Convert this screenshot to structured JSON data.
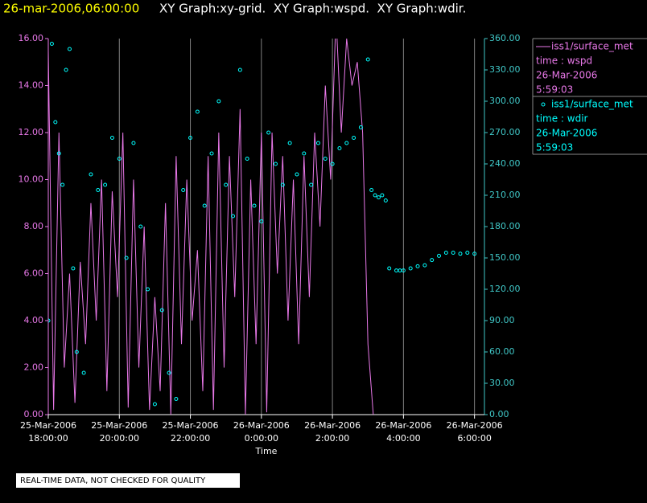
{
  "chart_data": {
    "type": "line-scatter",
    "title_time": "26-mar-2006,06:00:00",
    "title": "XY Graph:xy-grid.  XY Graph:wspd.  XY Graph:wdir.",
    "xlabel": "Time",
    "note": "REAL-TIME DATA, NOT CHECKED FOR QUALITY",
    "grid": true,
    "xlim": [
      0,
      12.28
    ],
    "xticks": [
      {
        "value": 0,
        "label": "25-Mar-2006 18:00:00"
      },
      {
        "value": 2,
        "label": "25-Mar-2006 20:00:00"
      },
      {
        "value": 4,
        "label": "25-Mar-2006 22:00:00"
      },
      {
        "value": 6,
        "label": "26-Mar-2006 0:00:00"
      },
      {
        "value": 8,
        "label": "26-Mar-2006 2:00:00"
      },
      {
        "value": 10,
        "label": "26-Mar-2006 4:00:00"
      },
      {
        "value": 12,
        "label": "26-Mar-2006 6:00:00"
      }
    ],
    "ylim": [
      0,
      16
    ],
    "yticks": [
      {
        "value": 0,
        "label": "0.00"
      },
      {
        "value": 2,
        "label": "2.00"
      },
      {
        "value": 4,
        "label": "4.00"
      },
      {
        "value": 6,
        "label": "6.00"
      },
      {
        "value": 8,
        "label": "8.00"
      },
      {
        "value": 10,
        "label": "10.00"
      },
      {
        "value": 12,
        "label": "12.00"
      },
      {
        "value": 14,
        "label": "14.00"
      },
      {
        "value": 16,
        "label": "16.00"
      }
    ],
    "y2lim": [
      0,
      360
    ],
    "y2ticks": [
      {
        "value": 0,
        "label": "0.00"
      },
      {
        "value": 30,
        "label": "30.00"
      },
      {
        "value": 60,
        "label": "60.00"
      },
      {
        "value": 90,
        "label": "90.00"
      },
      {
        "value": 120,
        "label": "120.00"
      },
      {
        "value": 150,
        "label": "150.00"
      },
      {
        "value": 180,
        "label": "180.00"
      },
      {
        "value": 210,
        "label": "210.00"
      },
      {
        "value": 240,
        "label": "240.00"
      },
      {
        "value": 270,
        "label": "270.00"
      },
      {
        "value": 300,
        "label": "300.00"
      },
      {
        "value": 330,
        "label": "330.00"
      },
      {
        "value": 360,
        "label": "360.00"
      }
    ],
    "series": [
      {
        "name": "iss1/surface_met",
        "legend_lines": [
          "time : wspd",
          "26-Mar-2006",
          "5:59:03"
        ],
        "color": "#e878e8",
        "mark": "line",
        "x": [
          0,
          0.15,
          0.3,
          0.45,
          0.6,
          0.75,
          0.9,
          1.05,
          1.2,
          1.35,
          1.5,
          1.65,
          1.8,
          1.95,
          2.1,
          2.25,
          2.4,
          2.55,
          2.7,
          2.85,
          3,
          3.15,
          3.3,
          3.45,
          3.6,
          3.75,
          3.9,
          4.05,
          4.2,
          4.35,
          4.5,
          4.65,
          4.8,
          4.95,
          5.1,
          5.25,
          5.4,
          5.55,
          5.7,
          5.85,
          6,
          6.15,
          6.3,
          6.45,
          6.6,
          6.75,
          6.9,
          7.05,
          7.2,
          7.35,
          7.5,
          7.65,
          7.8,
          7.95,
          8.1,
          8.25,
          8.4,
          8.55,
          8.7,
          8.85,
          9,
          9.15
        ],
        "values": [
          15.5,
          0.2,
          12,
          2,
          6,
          0.5,
          6.5,
          3,
          9,
          4,
          10,
          1,
          9.5,
          5,
          12,
          0.3,
          10,
          2,
          8,
          0.2,
          5,
          1,
          9,
          0,
          11,
          3,
          10,
          4,
          7,
          1,
          11,
          0.2,
          12,
          2,
          11,
          5,
          13,
          0,
          10,
          3,
          12,
          0.1,
          12,
          6,
          11,
          4,
          10,
          3,
          11,
          5,
          12,
          8,
          14,
          10,
          17,
          12,
          16,
          14,
          15,
          12,
          3,
          0
        ]
      },
      {
        "name": "iss1/surface_met",
        "legend_lines": [
          "time : wdir",
          "26-Mar-2006",
          "5:59:03"
        ],
        "color": "#00ffff",
        "mark": "circle",
        "axis": "y2",
        "x": [
          0,
          0.1,
          0.2,
          0.3,
          0.4,
          0.5,
          0.6,
          0.7,
          0.8,
          1.0,
          1.2,
          1.4,
          1.6,
          1.8,
          2.0,
          2.2,
          2.4,
          2.6,
          2.8,
          3.0,
          3.2,
          3.4,
          3.6,
          3.8,
          4.0,
          4.2,
          4.4,
          4.6,
          4.8,
          5.0,
          5.2,
          5.4,
          5.6,
          5.8,
          6.0,
          6.2,
          6.4,
          6.6,
          6.8,
          7.0,
          7.2,
          7.4,
          7.6,
          7.8,
          8.0,
          8.2,
          8.4,
          8.6,
          8.8,
          9.0,
          9.1,
          9.2,
          9.3,
          9.4,
          9.5,
          9.6,
          9.8,
          9.9,
          10.0,
          10.2,
          10.4,
          10.6,
          10.8,
          11.0,
          11.2,
          11.4,
          11.6,
          11.8,
          12.0
        ],
        "values": [
          90,
          355,
          280,
          250,
          220,
          330,
          350,
          140,
          60,
          40,
          230,
          215,
          220,
          265,
          245,
          150,
          260,
          180,
          120,
          10,
          100,
          40,
          15,
          215,
          265,
          290,
          200,
          250,
          300,
          220,
          190,
          330,
          245,
          200,
          185,
          270,
          240,
          220,
          260,
          230,
          250,
          220,
          260,
          245,
          240,
          255,
          260,
          265,
          275,
          340,
          215,
          210,
          208,
          210,
          205,
          140,
          138,
          138,
          138,
          140,
          142,
          143,
          148,
          152,
          155,
          155,
          154,
          155,
          154
        ]
      }
    ]
  }
}
